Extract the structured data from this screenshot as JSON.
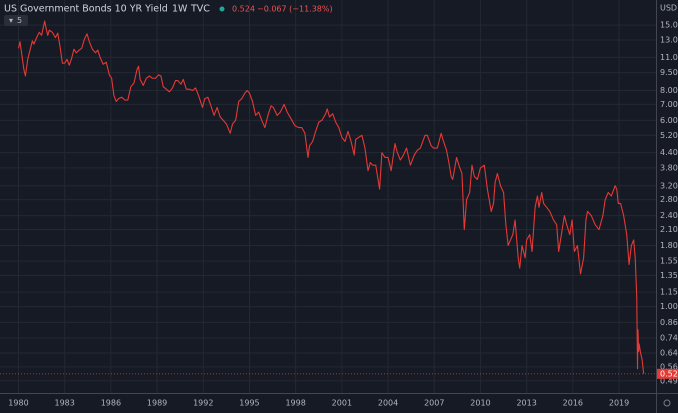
{
  "header": {
    "title": "US Government Bonds 10 YR Yield",
    "interval": "1W",
    "source": "TVC",
    "last": "0.524",
    "change": "−0.067 (−11.38%)",
    "indicator_count": "5",
    "currency": "USD"
  },
  "chart_data": {
    "type": "line",
    "log_scale": true,
    "grid": true,
    "color": "#e53935",
    "x": [
      1980.0,
      1980.1,
      1980.2,
      1980.35,
      1980.45,
      1980.6,
      1980.75,
      1980.9,
      1981.0,
      1981.2,
      1981.35,
      1981.5,
      1981.7,
      1981.8,
      1981.9,
      1982.0,
      1982.2,
      1982.4,
      1982.55,
      1982.7,
      1982.85,
      1983.0,
      1983.15,
      1983.3,
      1983.45,
      1983.6,
      1983.75,
      1983.95,
      1984.1,
      1984.3,
      1984.45,
      1984.6,
      1984.8,
      1985.0,
      1985.15,
      1985.3,
      1985.5,
      1985.7,
      1985.9,
      1986.05,
      1986.2,
      1986.35,
      1986.5,
      1986.7,
      1986.9,
      1987.1,
      1987.3,
      1987.5,
      1987.7,
      1987.8,
      1987.9,
      1988.1,
      1988.3,
      1988.5,
      1988.7,
      1988.9,
      1989.1,
      1989.25,
      1989.4,
      1989.6,
      1989.8,
      1990.0,
      1990.2,
      1990.35,
      1990.55,
      1990.7,
      1990.9,
      1991.1,
      1991.3,
      1991.5,
      1991.7,
      1991.95,
      1992.1,
      1992.3,
      1992.5,
      1992.7,
      1992.9,
      1993.1,
      1993.3,
      1993.5,
      1993.75,
      1993.9,
      1994.1,
      1994.3,
      1994.5,
      1994.7,
      1994.85,
      1995.0,
      1995.2,
      1995.4,
      1995.6,
      1995.8,
      1996.0,
      1996.2,
      1996.4,
      1996.55,
      1996.8,
      1997.0,
      1997.25,
      1997.45,
      1997.7,
      1997.95,
      1998.2,
      1998.4,
      1998.6,
      1998.8,
      1998.9,
      1999.1,
      1999.3,
      1999.5,
      1999.7,
      1999.95,
      2000.05,
      2000.2,
      2000.4,
      2000.6,
      2000.8,
      2001.0,
      2001.2,
      2001.4,
      2001.6,
      2001.8,
      2001.9,
      2002.1,
      2002.3,
      2002.5,
      2002.7,
      2002.85,
      2003.0,
      2003.2,
      2003.45,
      2003.6,
      2003.8,
      2004.0,
      2004.2,
      2004.45,
      2004.6,
      2004.8,
      2005.0,
      2005.2,
      2005.45,
      2005.7,
      2005.9,
      2006.1,
      2006.4,
      2006.55,
      2006.8,
      2006.95,
      2007.2,
      2007.45,
      2007.6,
      2007.8,
      2007.95,
      2008.1,
      2008.2,
      2008.45,
      2008.6,
      2008.8,
      2008.95,
      2009.1,
      2009.3,
      2009.45,
      2009.6,
      2009.8,
      2010.0,
      2010.25,
      2010.45,
      2010.7,
      2010.85,
      2010.95,
      2011.1,
      2011.3,
      2011.5,
      2011.65,
      2011.8,
      2011.95,
      2012.1,
      2012.25,
      2012.45,
      2012.55,
      2012.7,
      2012.9,
      2013.0,
      2013.2,
      2013.35,
      2013.55,
      2013.7,
      2013.8,
      2013.98,
      2014.1,
      2014.3,
      2014.5,
      2014.75,
      2014.95,
      2015.08,
      2015.2,
      2015.45,
      2015.6,
      2015.8,
      2015.95,
      2016.1,
      2016.3,
      2016.5,
      2016.7,
      2016.85,
      2016.95,
      2017.2,
      2017.45,
      2017.7,
      2017.95,
      2018.1,
      2018.3,
      2018.5,
      2018.75,
      2018.85,
      2018.95,
      2019.1,
      2019.3,
      2019.5,
      2019.65,
      2019.8,
      2019.95,
      2020.05,
      2020.15,
      2020.2,
      2020.23,
      2020.27,
      2020.3,
      2020.4,
      2020.5,
      2020.55,
      2020.6
    ],
    "values": [
      12.0,
      12.8,
      11.5,
      9.8,
      9.2,
      10.8,
      11.8,
      12.9,
      12.5,
      13.4,
      14.0,
      13.6,
      15.6,
      14.5,
      13.6,
      14.3,
      14.0,
      13.3,
      13.9,
      12.2,
      10.4,
      10.4,
      10.8,
      10.2,
      10.9,
      11.9,
      11.5,
      11.8,
      12.0,
      13.2,
      13.8,
      12.8,
      11.9,
      11.5,
      11.8,
      11.0,
      10.3,
      10.5,
      9.3,
      9.0,
      7.6,
      7.2,
      7.4,
      7.5,
      7.3,
      7.3,
      8.3,
      8.6,
      9.8,
      10.1,
      8.9,
      8.4,
      9.0,
      9.2,
      9.0,
      9.0,
      9.3,
      9.2,
      8.3,
      8.1,
      7.9,
      8.2,
      8.8,
      8.8,
      8.5,
      8.9,
      8.1,
      8.1,
      8.0,
      8.2,
      7.6,
      6.8,
      7.4,
      7.5,
      6.9,
      6.3,
      6.8,
      6.2,
      6.0,
      5.8,
      5.3,
      5.8,
      6.0,
      7.2,
      7.4,
      7.8,
      8.0,
      7.8,
      7.2,
      6.3,
      6.5,
      6.0,
      5.6,
      6.3,
      6.9,
      6.8,
      6.3,
      6.5,
      7.0,
      6.5,
      6.1,
      5.7,
      5.6,
      5.6,
      5.3,
      4.2,
      4.7,
      4.9,
      5.4,
      5.9,
      6.0,
      6.4,
      6.7,
      6.2,
      6.4,
      5.9,
      5.6,
      5.1,
      4.9,
      5.4,
      4.9,
      4.3,
      5.0,
      5.1,
      5.2,
      4.6,
      3.7,
      4.0,
      3.9,
      3.9,
      3.1,
      4.4,
      4.2,
      4.2,
      3.7,
      4.8,
      4.4,
      4.1,
      4.3,
      4.6,
      3.9,
      4.3,
      4.5,
      4.6,
      5.2,
      5.2,
      4.7,
      4.6,
      4.6,
      5.3,
      4.9,
      4.5,
      4.0,
      3.5,
      3.4,
      4.2,
      3.9,
      3.6,
      2.1,
      2.8,
      3.0,
      3.9,
      3.5,
      3.4,
      3.8,
      3.9,
      3.1,
      2.5,
      2.7,
      3.3,
      3.6,
      3.2,
      3.0,
      2.2,
      1.8,
      1.9,
      2.0,
      2.3,
      1.6,
      1.45,
      1.8,
      1.6,
      1.9,
      2.0,
      1.7,
      2.6,
      2.9,
      2.6,
      3.0,
      2.7,
      2.6,
      2.5,
      2.3,
      2.2,
      1.7,
      1.9,
      2.4,
      2.2,
      2.0,
      2.3,
      1.7,
      1.8,
      1.37,
      1.6,
      2.3,
      2.5,
      2.4,
      2.2,
      2.1,
      2.4,
      2.8,
      3.0,
      2.9,
      3.2,
      3.1,
      2.7,
      2.7,
      2.4,
      2.0,
      1.5,
      1.8,
      1.9,
      1.6,
      1.1,
      0.55,
      0.8,
      0.65,
      0.7,
      0.64,
      0.6,
      0.56,
      0.524
    ],
    "xlim": [
      1978.8,
      2021.4
    ],
    "xticks": [
      1980,
      1983,
      1986,
      1989,
      1992,
      1995,
      1998,
      2001,
      2004,
      2007,
      2010,
      2013,
      2016,
      2019
    ],
    "ylim": [
      0.44,
      16.7
    ],
    "yticks": [
      {
        "value": 15,
        "label": "15.000"
      },
      {
        "value": 13,
        "label": "13.000"
      },
      {
        "value": 11,
        "label": "11.000"
      },
      {
        "value": 9.5,
        "label": "9.500"
      },
      {
        "value": 8,
        "label": "8.000"
      },
      {
        "value": 7,
        "label": "7.000"
      },
      {
        "value": 6,
        "label": "6.000"
      },
      {
        "value": 5.2,
        "label": "5.200"
      },
      {
        "value": 4.4,
        "label": "4.400"
      },
      {
        "value": 3.8,
        "label": "3.800"
      },
      {
        "value": 3.2,
        "label": "3.200"
      },
      {
        "value": 2.8,
        "label": "2.800"
      },
      {
        "value": 2.4,
        "label": "2.400"
      },
      {
        "value": 2.1,
        "label": "2.100"
      },
      {
        "value": 1.8,
        "label": "1.800"
      },
      {
        "value": 1.55,
        "label": "1.550"
      },
      {
        "value": 1.35,
        "label": "1.350"
      },
      {
        "value": 1.15,
        "label": "1.150"
      },
      {
        "value": 1,
        "label": "1.000"
      },
      {
        "value": 0.86,
        "label": "0.860"
      },
      {
        "value": 0.74,
        "label": "0.740"
      },
      {
        "value": 0.64,
        "label": "0.640"
      },
      {
        "value": 0.56,
        "label": "0.560"
      },
      {
        "value": 0.49,
        "label": "0.490"
      }
    ],
    "price_line": {
      "value": 0.524,
      "label": "0.524"
    }
  }
}
